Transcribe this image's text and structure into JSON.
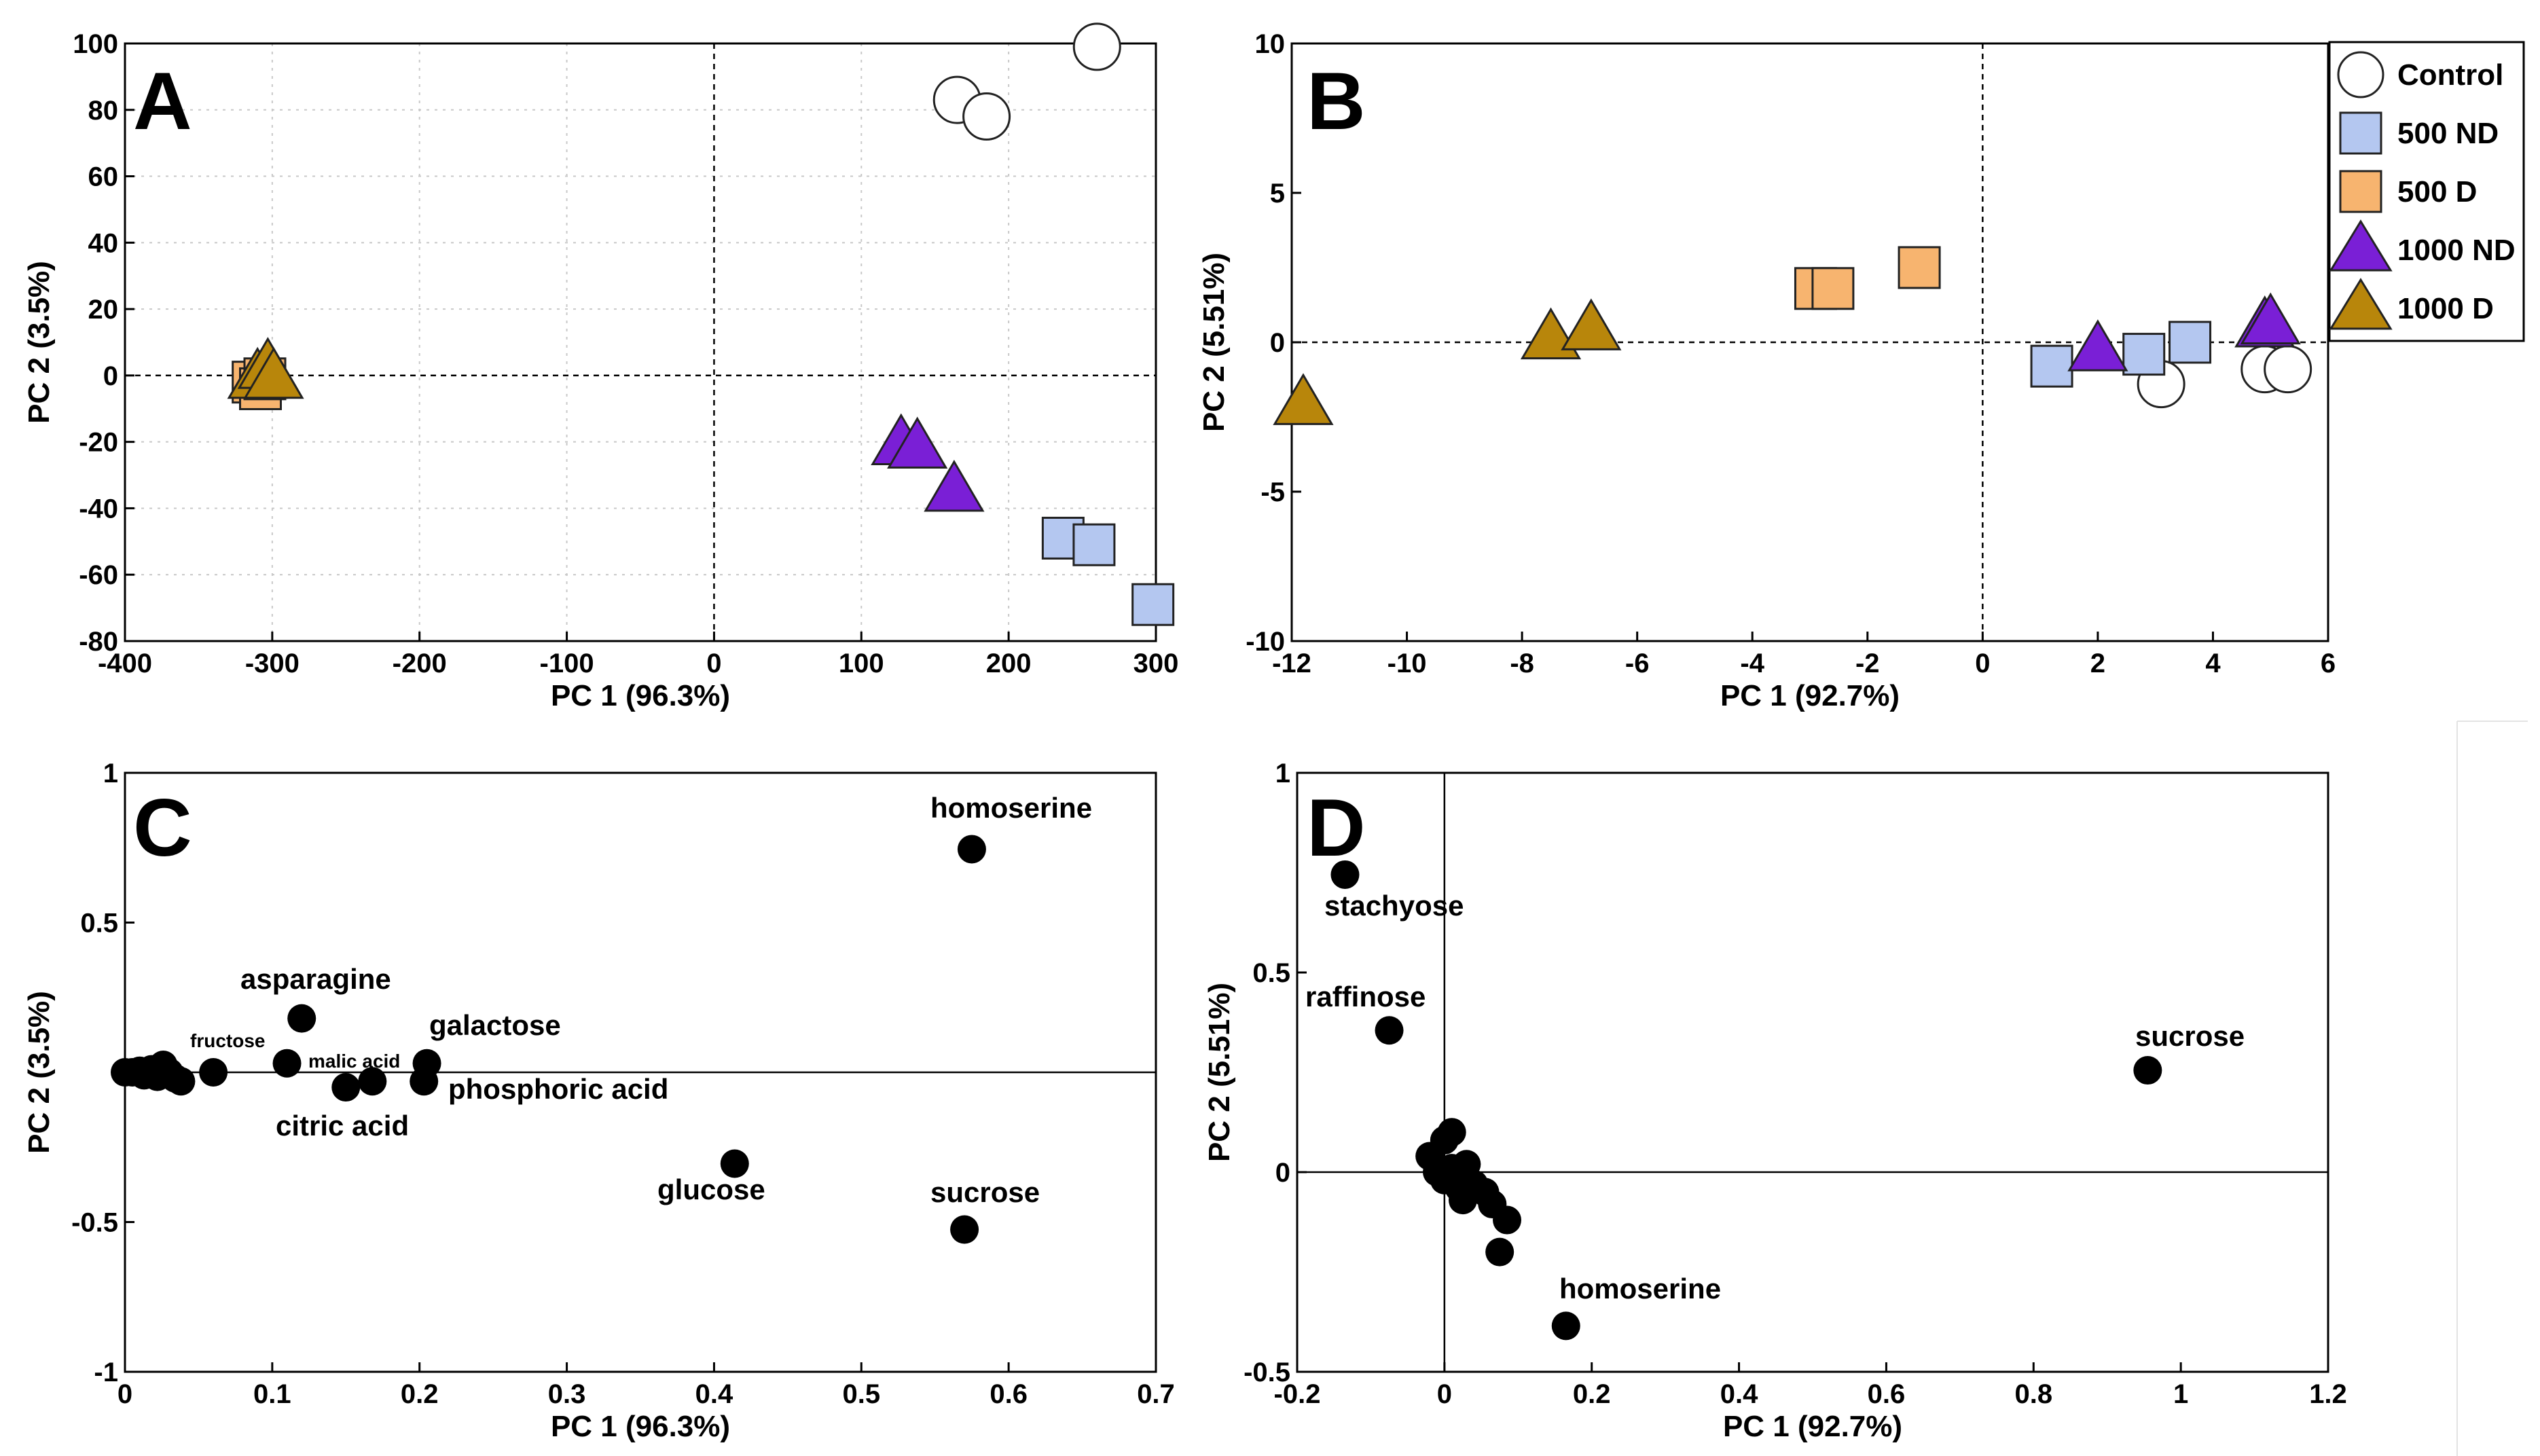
{
  "chart_data": [
    {
      "panel": "A",
      "type": "scatter",
      "xlabel": "PC 1 (96.3%)",
      "ylabel": "PC 2 (3.5%)",
      "xlim": [
        -400,
        300
      ],
      "ylim": [
        -80,
        100
      ],
      "xticks": [
        -400,
        -300,
        -200,
        -100,
        0,
        100,
        200,
        300
      ],
      "yticks": [
        -80,
        -60,
        -40,
        -20,
        0,
        20,
        40,
        60,
        80,
        100
      ],
      "grid": true,
      "zero_lines": "dashed",
      "series": [
        {
          "name": "Control",
          "marker": "circle",
          "points": [
            [
              165,
              83
            ],
            [
              185,
              78
            ],
            [
              260,
              99
            ]
          ]
        },
        {
          "name": "500 ND",
          "marker": "square",
          "points": [
            [
              237,
              -49
            ],
            [
              258,
              -51
            ],
            [
              298,
              -69
            ]
          ]
        },
        {
          "name": "500 D",
          "marker": "square",
          "points": [
            [
              -313,
              -2
            ],
            [
              -308,
              -4
            ],
            [
              -305,
              -1
            ]
          ]
        },
        {
          "name": "1000 ND",
          "marker": "triangle",
          "points": [
            [
              127,
              -21
            ],
            [
              138,
              -22
            ],
            [
              163,
              -35
            ]
          ]
        },
        {
          "name": "1000 D",
          "marker": "triangle",
          "points": [
            [
              -310,
              -1
            ],
            [
              -303,
              2
            ],
            [
              -299,
              -1
            ]
          ]
        }
      ]
    },
    {
      "panel": "B",
      "type": "scatter",
      "xlabel": "PC 1 (92.7%)",
      "ylabel": "PC 2 (5.51%)",
      "xlim": [
        -12,
        6
      ],
      "ylim": [
        -10,
        10
      ],
      "xticks": [
        -12,
        -10,
        -8,
        -6,
        -4,
        -2,
        0,
        2,
        4,
        6
      ],
      "yticks": [
        -10,
        -5,
        0,
        5,
        10
      ],
      "grid": false,
      "zero_lines": "dashed",
      "legend": {
        "position": "top-right",
        "entries": [
          "Control",
          "500 ND",
          "500 D",
          "1000 ND",
          "1000 D"
        ]
      },
      "series": [
        {
          "name": "Control",
          "marker": "circle",
          "points": [
            [
              3.1,
              -1.4
            ],
            [
              4.9,
              -0.9
            ],
            [
              5.3,
              -0.9
            ]
          ]
        },
        {
          "name": "500 ND",
          "marker": "square",
          "points": [
            [
              1.2,
              -0.8
            ],
            [
              2.8,
              -0.4
            ],
            [
              3.6,
              0.0
            ]
          ]
        },
        {
          "name": "500 D",
          "marker": "square",
          "points": [
            [
              -2.9,
              1.8
            ],
            [
              -2.6,
              1.8
            ],
            [
              -1.1,
              2.5
            ]
          ]
        },
        {
          "name": "1000 ND",
          "marker": "triangle",
          "points": [
            [
              2.0,
              -0.3
            ],
            [
              4.9,
              0.5
            ],
            [
              5.0,
              0.6
            ]
          ]
        },
        {
          "name": "1000 D",
          "marker": "triangle",
          "points": [
            [
              -11.8,
              -2.1
            ],
            [
              -7.5,
              0.1
            ],
            [
              -6.8,
              0.4
            ]
          ]
        }
      ]
    },
    {
      "panel": "C",
      "type": "scatter",
      "xlabel": "PC 1 (96.3%)",
      "ylabel": "PC 2 (3.5%)",
      "xlim": [
        0,
        0.7
      ],
      "ylim": [
        -1,
        1
      ],
      "xticks": [
        "0",
        "0.1",
        "0.2",
        "0.3",
        "0.4",
        "0.5",
        "0.6",
        "0.7"
      ],
      "yticks": [
        "-1",
        "-0.5",
        "0",
        "0.5",
        "1"
      ],
      "ytick_labels_shown": [
        "-1",
        "-0.5",
        "0.5",
        "1"
      ],
      "grid": false,
      "zero_line": "solid",
      "points": [
        {
          "x": 0.0,
          "y": 0.0
        },
        {
          "x": 0.005,
          "y": 0.0
        },
        {
          "x": 0.01,
          "y": 0.005
        },
        {
          "x": 0.013,
          "y": -0.01
        },
        {
          "x": 0.018,
          "y": 0.01
        },
        {
          "x": 0.022,
          "y": -0.015
        },
        {
          "x": 0.026,
          "y": 0.025
        },
        {
          "x": 0.03,
          "y": 0.0
        },
        {
          "x": 0.034,
          "y": -0.02
        },
        {
          "x": 0.038,
          "y": -0.03
        },
        {
          "x": 0.06,
          "y": 0.0,
          "label": "fructose"
        },
        {
          "x": 0.12,
          "y": 0.18,
          "label": "asparagine"
        },
        {
          "x": 0.11,
          "y": 0.03,
          "label": "malic acid"
        },
        {
          "x": 0.15,
          "y": -0.05,
          "label": "citric acid"
        },
        {
          "x": 0.168,
          "y": -0.03
        },
        {
          "x": 0.205,
          "y": 0.03,
          "label": "galactose"
        },
        {
          "x": 0.203,
          "y": -0.03,
          "label": "phosphoric acid"
        },
        {
          "x": 0.414,
          "y": -0.305,
          "label": "glucose"
        },
        {
          "x": 0.57,
          "y": -0.525,
          "label": "sucrose"
        },
        {
          "x": 0.575,
          "y": 0.745,
          "label": "homoserine"
        }
      ]
    },
    {
      "panel": "D",
      "type": "scatter",
      "xlabel": "PC 1 (92.7%)",
      "ylabel": "PC 2 (5.51%)",
      "xlim": [
        -0.2,
        1.2
      ],
      "ylim": [
        -0.5,
        1
      ],
      "xticks": [
        "-0.2",
        "0",
        "0.2",
        "0.4",
        "0.6",
        "0.8",
        "1",
        "1.2"
      ],
      "yticks": [
        "-0.5",
        "0",
        "0.5",
        "1"
      ],
      "grid": false,
      "zero_lines": "solid",
      "points": [
        {
          "x": -0.135,
          "y": 0.745,
          "label": "stachyose"
        },
        {
          "x": -0.075,
          "y": 0.355,
          "label": "raffinose"
        },
        {
          "x": 0.955,
          "y": 0.255,
          "label": "sucrose"
        },
        {
          "x": 0.165,
          "y": -0.385,
          "label": "homoserine"
        },
        {
          "x": -0.02,
          "y": 0.04
        },
        {
          "x": 0.0,
          "y": 0.08
        },
        {
          "x": 0.01,
          "y": 0.1
        },
        {
          "x": -0.01,
          "y": 0.0
        },
        {
          "x": 0.0,
          "y": -0.02
        },
        {
          "x": 0.01,
          "y": 0.01
        },
        {
          "x": 0.02,
          "y": -0.04
        },
        {
          "x": 0.025,
          "y": -0.01
        },
        {
          "x": 0.03,
          "y": 0.02
        },
        {
          "x": 0.025,
          "y": -0.07
        },
        {
          "x": 0.04,
          "y": -0.03
        },
        {
          "x": 0.055,
          "y": -0.05
        },
        {
          "x": 0.065,
          "y": -0.08
        },
        {
          "x": 0.085,
          "y": -0.12
        },
        {
          "x": 0.075,
          "y": -0.2
        }
      ]
    }
  ],
  "panel_letters": [
    "A",
    "B",
    "C",
    "D"
  ],
  "colors": {
    "control_fill": "#ffffff",
    "nd500_fill": "#b4c7f0",
    "d500_fill": "#f7b46f",
    "nd1000_fill": "#7a1fd6",
    "d1000_fill": "#b8860b",
    "marker_stroke": "#222222",
    "point_fill": "#000000"
  }
}
